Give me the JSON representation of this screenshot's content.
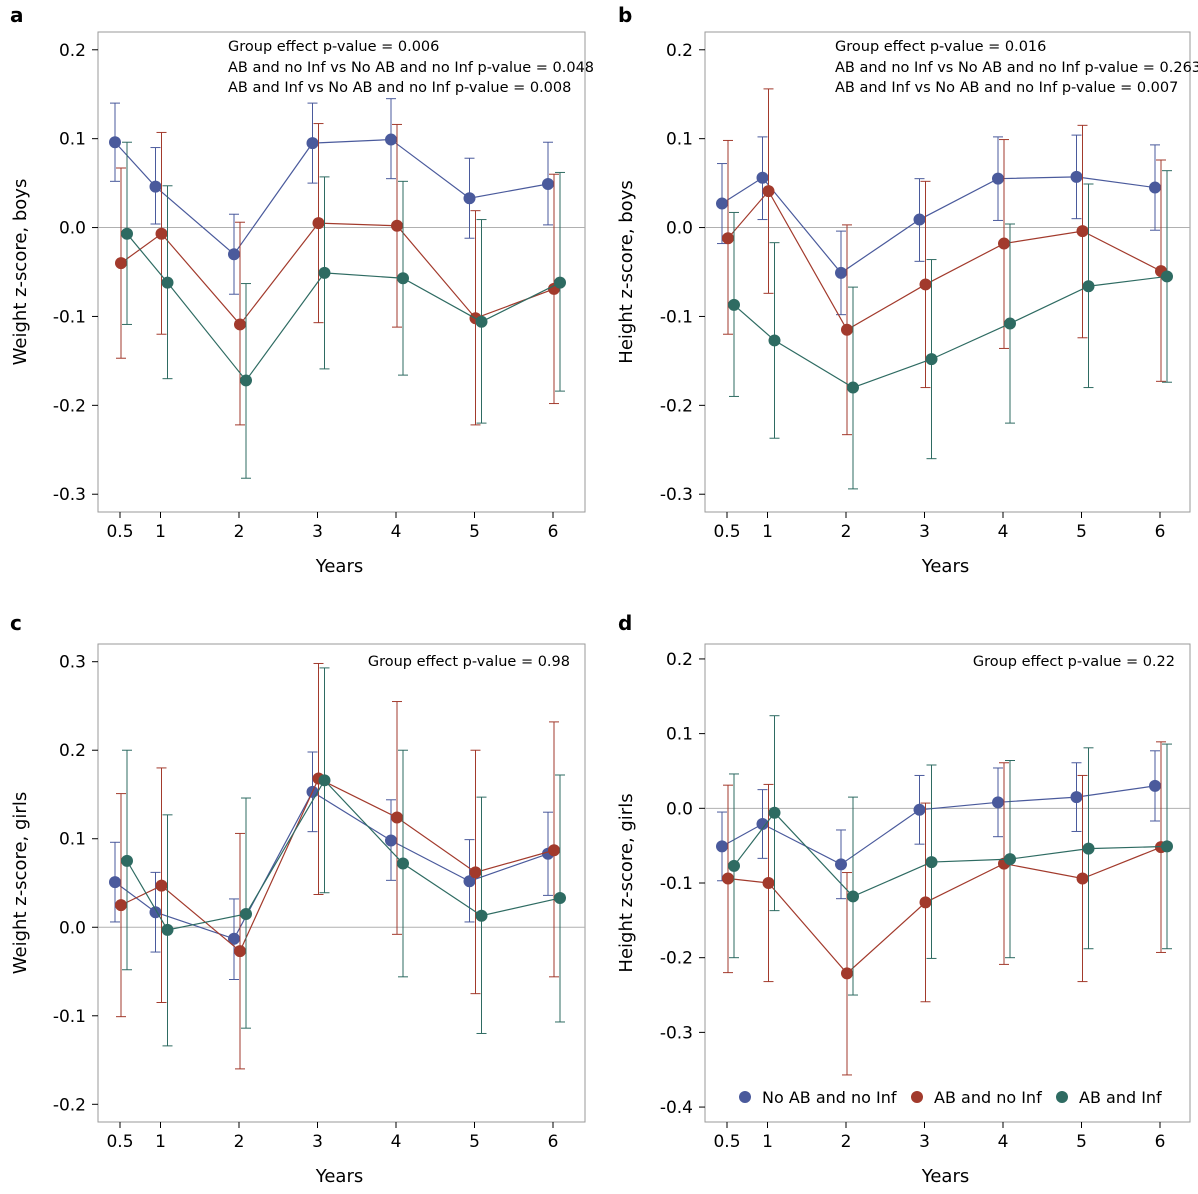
{
  "colors": {
    "No AB and no Inf": "#4a5a9c",
    "AB and no Inf": "#a23a2c",
    "AB and Inf": "#2e6b62",
    "frame": "#9a9a9a",
    "zero_line": "#b0b0b0"
  },
  "legend": {
    "entries": [
      "No AB and no Inf",
      "AB and no Inf",
      "AB and Inf"
    ],
    "placement": "bottom-inside of panel d"
  },
  "chart_data": [
    {
      "panel": "a",
      "type": "line",
      "title": "",
      "xlabel": "Years",
      "ylabel": "Weight z-score, boys",
      "x": [
        0.5,
        1,
        2,
        3,
        4,
        5,
        6
      ],
      "x_tick_labels": [
        "0.5",
        "1",
        "2",
        "3",
        "4",
        "5",
        "6"
      ],
      "ylim": [
        -0.32,
        0.22
      ],
      "y_ticks": [
        0.2,
        0.1,
        0.0,
        -0.1,
        -0.2,
        -0.3
      ],
      "y_tick_labels": [
        "0.2",
        "0.1",
        "0.0",
        "-0.1",
        "-0.2",
        "-0.3"
      ],
      "annotations": [
        "Group effect p-value = 0.006",
        "AB and no Inf vs No AB and no Inf p-value = 0.048",
        "AB and Inf vs No AB and no Inf p-value = 0.008"
      ],
      "series": [
        {
          "name": "No AB and no Inf",
          "values": [
            0.096,
            0.046,
            -0.03,
            0.095,
            0.099,
            0.033,
            0.049
          ],
          "lower": [
            0.052,
            0.004,
            -0.075,
            0.05,
            0.055,
            -0.012,
            0.003
          ],
          "upper": [
            0.14,
            0.09,
            0.015,
            0.14,
            0.145,
            0.078,
            0.096
          ]
        },
        {
          "name": "AB and no Inf",
          "values": [
            -0.04,
            -0.007,
            -0.109,
            0.005,
            0.002,
            -0.102,
            -0.069
          ],
          "lower": [
            -0.147,
            -0.12,
            -0.222,
            -0.107,
            -0.112,
            -0.222,
            -0.198
          ],
          "upper": [
            0.067,
            0.107,
            0.006,
            0.117,
            0.116,
            0.019,
            0.06
          ]
        },
        {
          "name": "AB and Inf",
          "values": [
            -0.007,
            -0.062,
            -0.172,
            -0.051,
            -0.057,
            -0.106,
            -0.062
          ],
          "lower": [
            -0.109,
            -0.17,
            -0.282,
            -0.159,
            -0.166,
            -0.22,
            -0.184
          ],
          "upper": [
            0.096,
            0.047,
            -0.063,
            0.057,
            0.052,
            0.009,
            0.062
          ]
        }
      ]
    },
    {
      "panel": "b",
      "type": "line",
      "title": "",
      "xlabel": "Years",
      "ylabel": "Height z-score, boys",
      "x": [
        0.5,
        1,
        2,
        3,
        4,
        5,
        6
      ],
      "x_tick_labels": [
        "0.5",
        "1",
        "2",
        "3",
        "4",
        "5",
        "6"
      ],
      "ylim": [
        -0.32,
        0.22
      ],
      "y_ticks": [
        0.2,
        0.1,
        0.0,
        -0.1,
        -0.2,
        -0.3
      ],
      "y_tick_labels": [
        "0.2",
        "0.1",
        "0.0",
        "-0.1",
        "-0.2",
        "-0.3"
      ],
      "annotations": [
        "Group effect p-value = 0.016",
        "AB and no Inf vs No AB and no Inf p-value = 0.263",
        "AB and Inf vs No AB and no Inf p-value = 0.007"
      ],
      "series": [
        {
          "name": "No AB and no Inf",
          "values": [
            0.027,
            0.056,
            -0.051,
            0.009,
            0.055,
            0.057,
            0.045
          ],
          "lower": [
            -0.018,
            0.009,
            -0.098,
            -0.038,
            0.008,
            0.01,
            -0.003
          ],
          "upper": [
            0.072,
            0.102,
            -0.004,
            0.055,
            0.102,
            0.104,
            0.093
          ]
        },
        {
          "name": "AB and no Inf",
          "values": [
            -0.012,
            0.041,
            -0.115,
            -0.064,
            -0.018,
            -0.004,
            -0.049
          ],
          "lower": [
            -0.12,
            -0.074,
            -0.233,
            -0.18,
            -0.136,
            -0.124,
            -0.173
          ],
          "upper": [
            0.098,
            0.156,
            0.003,
            0.052,
            0.099,
            0.115,
            0.076
          ]
        },
        {
          "name": "AB and Inf",
          "values": [
            -0.087,
            -0.127,
            -0.18,
            -0.148,
            -0.108,
            -0.066,
            -0.055
          ],
          "lower": [
            -0.19,
            -0.237,
            -0.294,
            -0.26,
            -0.22,
            -0.18,
            -0.174
          ],
          "upper": [
            0.017,
            -0.017,
            -0.067,
            -0.036,
            0.004,
            0.049,
            0.064
          ]
        }
      ]
    },
    {
      "panel": "c",
      "type": "line",
      "title": "",
      "xlabel": "Years",
      "ylabel": "Weight z-score, girls",
      "x": [
        0.5,
        1,
        2,
        3,
        4,
        5,
        6
      ],
      "x_tick_labels": [
        "0.5",
        "1",
        "2",
        "3",
        "4",
        "5",
        "6"
      ],
      "ylim": [
        -0.22,
        0.32
      ],
      "y_ticks": [
        0.3,
        0.2,
        0.1,
        0.0,
        -0.1,
        -0.2
      ],
      "y_tick_labels": [
        "0.3",
        "0.2",
        "0.1",
        "0.0",
        "-0.1",
        "-0.2"
      ],
      "annotations": [
        "Group effect p-value = 0.98"
      ],
      "series": [
        {
          "name": "No AB and no Inf",
          "values": [
            0.051,
            0.017,
            -0.013,
            0.153,
            0.098,
            0.052,
            0.083
          ],
          "lower": [
            0.006,
            -0.028,
            -0.059,
            0.108,
            0.053,
            0.006,
            0.036
          ],
          "upper": [
            0.096,
            0.062,
            0.032,
            0.198,
            0.144,
            0.099,
            0.13
          ]
        },
        {
          "name": "AB and no Inf",
          "values": [
            0.025,
            0.047,
            -0.027,
            0.168,
            0.124,
            0.062,
            0.087
          ],
          "lower": [
            -0.101,
            -0.085,
            -0.16,
            0.037,
            -0.008,
            -0.075,
            -0.056
          ],
          "upper": [
            0.151,
            0.18,
            0.106,
            0.298,
            0.255,
            0.2,
            0.232
          ]
        },
        {
          "name": "AB and Inf",
          "values": [
            0.075,
            -0.003,
            0.015,
            0.166,
            0.072,
            0.013,
            0.033
          ],
          "lower": [
            -0.048,
            -0.134,
            -0.114,
            0.039,
            -0.056,
            -0.12,
            -0.107
          ],
          "upper": [
            0.2,
            0.127,
            0.146,
            0.293,
            0.2,
            0.147,
            0.172
          ]
        }
      ]
    },
    {
      "panel": "d",
      "type": "line",
      "title": "",
      "xlabel": "Years",
      "ylabel": "Height z-score, girls",
      "x": [
        0.5,
        1,
        2,
        3,
        4,
        5,
        6
      ],
      "x_tick_labels": [
        "0.5",
        "1",
        "2",
        "3",
        "4",
        "5",
        "6"
      ],
      "ylim": [
        -0.42,
        0.22
      ],
      "y_ticks": [
        0.2,
        0.1,
        0.0,
        -0.1,
        -0.2,
        -0.3,
        -0.4
      ],
      "y_tick_labels": [
        "0.2",
        "0.1",
        "0.0",
        "-0.1",
        "-0.2",
        "-0.3",
        "-0.4"
      ],
      "annotations": [
        "Group effect p-value = 0.22"
      ],
      "series": [
        {
          "name": "No AB and no Inf",
          "values": [
            -0.051,
            -0.021,
            -0.075,
            -0.002,
            0.008,
            0.015,
            0.03
          ],
          "lower": [
            -0.097,
            -0.067,
            -0.121,
            -0.048,
            -0.038,
            -0.031,
            -0.017
          ],
          "upper": [
            -0.005,
            0.025,
            -0.029,
            0.044,
            0.054,
            0.061,
            0.077
          ]
        },
        {
          "name": "AB and no Inf",
          "values": [
            -0.094,
            -0.1,
            -0.221,
            -0.126,
            -0.074,
            -0.094,
            -0.052
          ],
          "lower": [
            -0.22,
            -0.232,
            -0.357,
            -0.259,
            -0.209,
            -0.232,
            -0.193
          ],
          "upper": [
            0.031,
            0.032,
            -0.086,
            0.007,
            0.061,
            0.044,
            0.089
          ]
        },
        {
          "name": "AB and Inf",
          "values": [
            -0.077,
            -0.006,
            -0.118,
            -0.072,
            -0.068,
            -0.054,
            -0.051
          ],
          "lower": [
            -0.2,
            -0.137,
            -0.25,
            -0.201,
            -0.2,
            -0.188,
            -0.188
          ],
          "upper": [
            0.046,
            0.124,
            0.015,
            0.058,
            0.064,
            0.081,
            0.086
          ]
        }
      ]
    }
  ]
}
